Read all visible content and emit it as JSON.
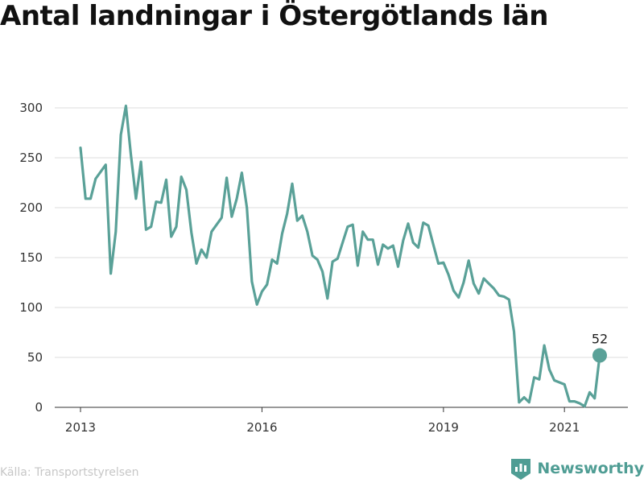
{
  "chart_data": {
    "type": "line",
    "title": "Antal landningar i Östergötlands län",
    "xlabel": "",
    "ylabel": "",
    "xlim": [
      "2013-01",
      "2021-11"
    ],
    "ylim": [
      0,
      310
    ],
    "y_ticks": [
      0,
      50,
      100,
      150,
      200,
      250,
      300
    ],
    "x_ticks": [
      "2013",
      "2016",
      "2019",
      "2021"
    ],
    "grid": true,
    "line_color": "#5aa198",
    "series": [
      {
        "x": [
          "2013-01",
          "2013-02",
          "2013-03",
          "2013-04",
          "2013-05",
          "2013-06",
          "2013-07",
          "2013-08",
          "2013-09",
          "2013-10",
          "2013-11",
          "2013-12",
          "2014-01",
          "2014-02",
          "2014-03",
          "2014-04",
          "2014-05",
          "2014-06",
          "2014-07",
          "2014-08",
          "2014-09",
          "2014-10",
          "2014-11",
          "2014-12",
          "2015-01",
          "2015-02",
          "2015-03",
          "2015-04",
          "2015-05",
          "2015-06",
          "2015-07",
          "2015-08",
          "2015-09",
          "2015-10",
          "2015-11",
          "2015-12",
          "2016-01",
          "2016-02",
          "2016-03",
          "2016-04",
          "2016-05",
          "2016-06",
          "2016-07",
          "2016-08",
          "2016-09",
          "2016-10",
          "2016-11",
          "2016-12",
          "2017-01",
          "2017-02",
          "2017-03",
          "2017-04",
          "2017-05",
          "2017-06",
          "2017-07",
          "2017-08",
          "2017-09",
          "2017-10",
          "2017-11",
          "2017-12",
          "2018-01",
          "2018-02",
          "2018-03",
          "2018-04",
          "2018-05",
          "2018-06",
          "2018-07",
          "2018-08",
          "2018-09",
          "2018-10",
          "2018-11",
          "2018-12",
          "2019-01",
          "2019-02",
          "2019-03",
          "2019-04",
          "2019-05",
          "2019-06",
          "2019-07",
          "2019-08",
          "2019-09",
          "2019-10",
          "2019-11",
          "2019-12",
          "2020-01",
          "2020-02",
          "2020-03",
          "2020-04",
          "2020-05",
          "2020-06",
          "2020-07",
          "2020-08",
          "2020-09",
          "2020-10",
          "2020-11",
          "2020-12",
          "2021-01",
          "2021-02",
          "2021-03",
          "2021-04",
          "2021-05",
          "2021-06",
          "2021-07",
          "2021-08"
        ],
        "values": [
          260,
          209,
          209,
          229,
          236,
          243,
          134,
          176,
          273,
          302,
          253,
          209,
          246,
          178,
          181,
          206,
          205,
          228,
          171,
          181,
          231,
          218,
          175,
          144,
          158,
          150,
          176,
          183,
          190,
          230,
          191,
          209,
          235,
          200,
          126,
          103,
          116,
          123,
          148,
          144,
          174,
          194,
          224,
          187,
          192,
          176,
          152,
          148,
          136,
          109,
          146,
          149,
          165,
          181,
          183,
          142,
          176,
          168,
          168,
          143,
          163,
          159,
          162,
          141,
          167,
          184,
          165,
          160,
          185,
          182,
          163,
          144,
          145,
          133,
          117,
          110,
          125,
          147,
          124,
          114,
          129,
          124,
          119,
          112,
          111,
          108,
          76,
          5,
          10,
          5,
          30,
          28,
          62,
          38,
          27,
          25,
          23,
          6,
          6,
          4,
          1,
          15,
          9,
          52
        ],
        "end_label": "52"
      }
    ]
  },
  "source": "Källa: Transportstyrelsen",
  "brand": {
    "name": "Newsworthy",
    "color": "#4f9d94"
  }
}
